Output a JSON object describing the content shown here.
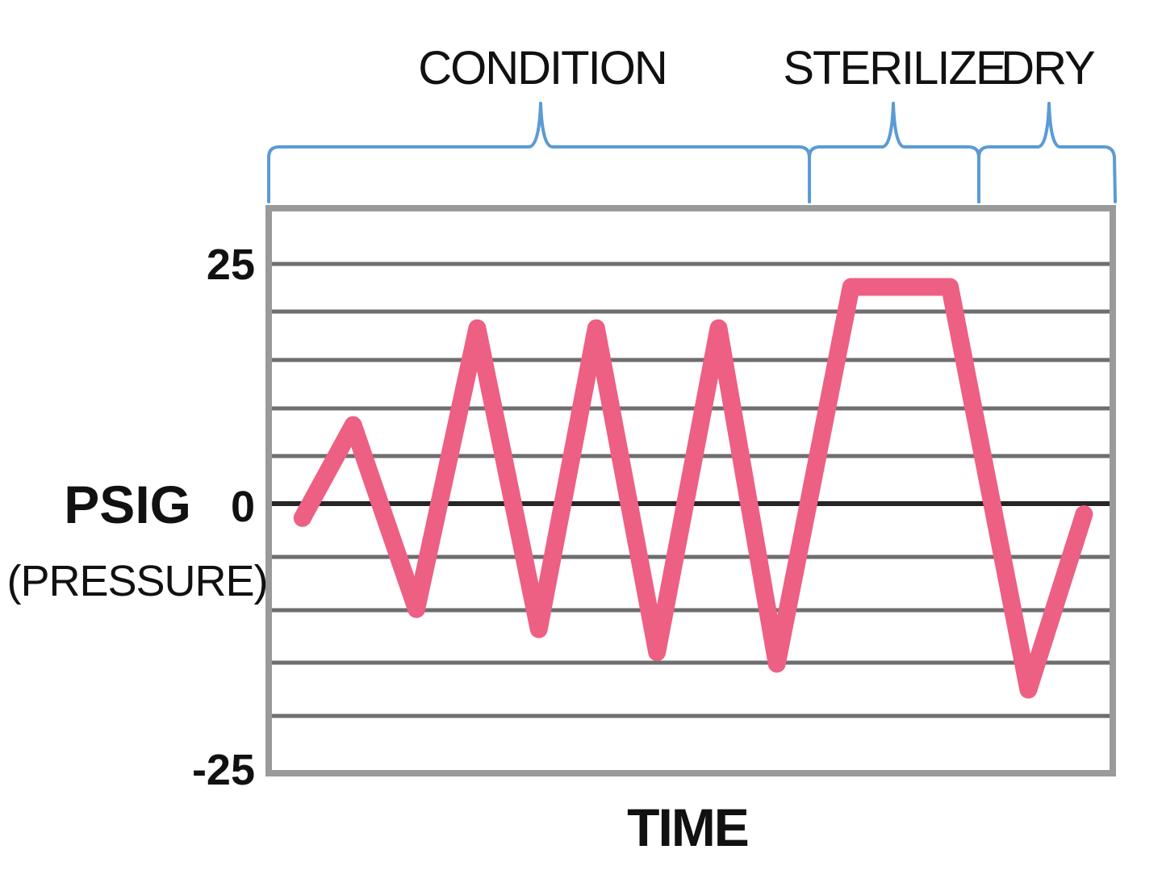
{
  "chart_data": {
    "type": "line",
    "title": "",
    "xlabel": "TIME",
    "ylabel": "PSIG",
    "ylabel_sub": "(PRESSURE)",
    "ylim": [
      -25,
      25
    ],
    "y_ticks": [
      {
        "value": 25,
        "label": "25"
      },
      {
        "value": 0,
        "label": "0"
      },
      {
        "value": -25,
        "label": "-25"
      }
    ],
    "grid": true,
    "legend": null,
    "phases": [
      {
        "label": "CONDITION",
        "x_start": 0,
        "x_end": 0.64
      },
      {
        "label": "STERILIZE",
        "x_start": 0.64,
        "x_end": 0.84
      },
      {
        "label": "DRY",
        "x_start": 0.84,
        "x_end": 1.0
      }
    ],
    "series": [
      {
        "name": "Pressure",
        "color": "#EE5F84",
        "x": [
          0.04,
          0.1,
          0.175,
          0.247,
          0.32,
          0.388,
          0.46,
          0.533,
          0.602,
          0.69,
          0.807,
          0.9,
          0.966
        ],
        "values": [
          -1.5,
          8.2,
          -11.0,
          18.3,
          -13.1,
          18.3,
          -15.5,
          18.3,
          -16.7,
          22.6,
          22.6,
          -19.4,
          -1.1
        ]
      }
    ]
  },
  "colors": {
    "line": "#EE5F84",
    "brace": "#5B9BD5",
    "grid": "#6E6E70",
    "zero_line": "#262626",
    "frame": "#9A9A9C"
  }
}
